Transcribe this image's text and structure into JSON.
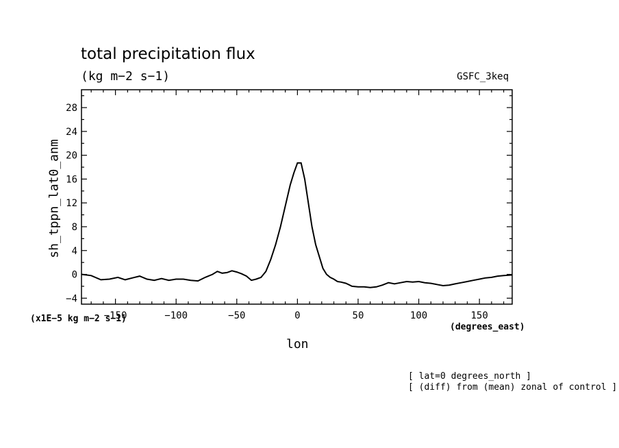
{
  "chart_data": {
    "type": "line",
    "title": "total precipitation flux",
    "units": "(kg m−2 s−1)",
    "run_label": "GSFC_3keq",
    "ylabel": "sh_tppn_lat0_anm",
    "xlabel": "lon",
    "scale_label": "(x1E−5 kg m−2 s−1)",
    "x_units_label": "(degrees_east)",
    "notes": [
      "[ lat=0 degrees_north ]",
      "[ (diff) from (mean) zonal of control ]"
    ],
    "xlim": [
      -178,
      177
    ],
    "ylim": [
      -5,
      31
    ],
    "x_ticks": [
      -150,
      -100,
      -50,
      0,
      50,
      100,
      150
    ],
    "x_tick_labels": [
      "−150",
      "−100",
      "−50",
      "0",
      "50",
      "100",
      "150"
    ],
    "y_ticks": [
      -4,
      0,
      4,
      8,
      12,
      16,
      20,
      24,
      28
    ],
    "y_tick_labels": [
      "−4",
      "0",
      "4",
      "8",
      "12",
      "16",
      "20",
      "24",
      "28"
    ],
    "series": [
      {
        "x": [
          -178,
          -170,
          -162,
          -155,
          -148,
          -142,
          -136,
          -130,
          -124,
          -118,
          -112,
          -106,
          -100,
          -94,
          -88,
          -82,
          -76,
          -70,
          -66,
          -62,
          -58,
          -54,
          -50,
          -46,
          -42,
          -38,
          -34,
          -30,
          -26,
          -22,
          -18,
          -14,
          -10,
          -6,
          -3,
          0,
          3,
          6,
          9,
          12,
          15,
          18,
          21,
          24,
          27,
          30,
          33,
          36,
          40,
          45,
          50,
          55,
          60,
          65,
          70,
          75,
          80,
          85,
          90,
          95,
          100,
          105,
          110,
          115,
          120,
          125,
          130,
          135,
          140,
          145,
          150,
          155,
          160,
          165,
          170,
          177
        ],
        "y": [
          0.0,
          -0.2,
          -0.9,
          -0.8,
          -0.5,
          -0.9,
          -0.6,
          -0.3,
          -0.8,
          -1.0,
          -0.7,
          -1.0,
          -0.8,
          -0.8,
          -1.0,
          -1.1,
          -0.5,
          0.0,
          0.5,
          0.2,
          0.3,
          0.6,
          0.4,
          0.1,
          -0.3,
          -1.0,
          -0.8,
          -0.5,
          0.5,
          2.5,
          5.0,
          8.0,
          11.5,
          15.0,
          17.0,
          18.7,
          18.7,
          16.0,
          12.0,
          8.0,
          5.0,
          3.0,
          1.0,
          0.0,
          -0.5,
          -0.8,
          -1.2,
          -1.3,
          -1.5,
          -2.0,
          -2.1,
          -2.1,
          -2.2,
          -2.1,
          -1.8,
          -1.4,
          -1.6,
          -1.4,
          -1.2,
          -1.3,
          -1.2,
          -1.4,
          -1.5,
          -1.7,
          -1.9,
          -1.8,
          -1.6,
          -1.4,
          -1.2,
          -1.0,
          -0.8,
          -0.6,
          -0.5,
          -0.3,
          -0.2,
          -0.1
        ]
      }
    ]
  }
}
